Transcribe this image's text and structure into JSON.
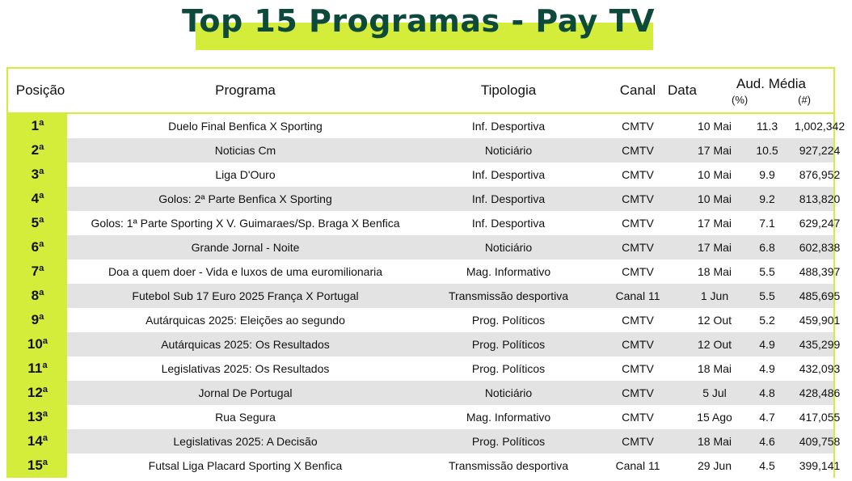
{
  "title": "Top 15 Programas - Pay TV",
  "header": {
    "posicao": "Posição",
    "programa": "Programa",
    "tipologia": "Tipologia",
    "canal": "Canal",
    "data": "Data",
    "aud_media": "Aud. Média",
    "pct": "(%)",
    "num": "(#)"
  },
  "colors": {
    "accent": "#d4ec3a",
    "title": "#0e4a3c",
    "stripe": "#e3e3e3"
  },
  "rows": [
    {
      "pos": "1ª",
      "programa": "Duelo Final Benfica X Sporting",
      "tipologia": "Inf. Desportiva",
      "canal": "CMTV",
      "data": "10 Mai",
      "pct": "11.3",
      "num": "1,002,342"
    },
    {
      "pos": "2ª",
      "programa": "Noticias Cm",
      "tipologia": "Noticiário",
      "canal": "CMTV",
      "data": "17 Mai",
      "pct": "10.5",
      "num": "927,224"
    },
    {
      "pos": "3ª",
      "programa": "Liga D'Ouro",
      "tipologia": "Inf. Desportiva",
      "canal": "CMTV",
      "data": "10 Mai",
      "pct": "9.9",
      "num": "876,952"
    },
    {
      "pos": "4ª",
      "programa": "Golos: 2ª Parte Benfica X Sporting",
      "tipologia": "Inf. Desportiva",
      "canal": "CMTV",
      "data": "10 Mai",
      "pct": "9.2",
      "num": "813,820"
    },
    {
      "pos": "5ª",
      "programa": "Golos: 1ª Parte Sporting X V. Guimaraes/Sp. Braga X Benfica",
      "tipologia": "Inf. Desportiva",
      "canal": "CMTV",
      "data": "17 Mai",
      "pct": "7.1",
      "num": "629,247"
    },
    {
      "pos": "6ª",
      "programa": "Grande Jornal - Noite",
      "tipologia": "Noticiário",
      "canal": "CMTV",
      "data": "17 Mai",
      "pct": "6.8",
      "num": "602,838"
    },
    {
      "pos": "7ª",
      "programa": "Doa a quem doer - Vida e luxos de uma euromilionaria",
      "tipologia": "Mag. Informativo",
      "canal": "CMTV",
      "data": "18 Mai",
      "pct": "5.5",
      "num": "488,397"
    },
    {
      "pos": "8ª",
      "programa": "Futebol Sub 17 Euro 2025 França X Portugal",
      "tipologia": "Transmissão desportiva",
      "canal": "Canal 11",
      "data": "1 Jun",
      "pct": "5.5",
      "num": "485,695"
    },
    {
      "pos": "9ª",
      "programa": "Autárquicas 2025: Eleições ao segundo",
      "tipologia": "Prog. Políticos",
      "canal": "CMTV",
      "data": "12 Out",
      "pct": "5.2",
      "num": "459,901"
    },
    {
      "pos": "10ª",
      "programa": "Autárquicas 2025: Os Resultados",
      "tipologia": "Prog. Políticos",
      "canal": "CMTV",
      "data": "12 Out",
      "pct": "4.9",
      "num": "435,299"
    },
    {
      "pos": "11ª",
      "programa": "Legislativas 2025: Os Resultados",
      "tipologia": "Prog. Políticos",
      "canal": "CMTV",
      "data": "18 Mai",
      "pct": "4.9",
      "num": "432,093"
    },
    {
      "pos": "12ª",
      "programa": "Jornal De Portugal",
      "tipologia": "Noticiário",
      "canal": "CMTV",
      "data": "5 Jul",
      "pct": "4.8",
      "num": "428,486"
    },
    {
      "pos": "13ª",
      "programa": "Rua Segura",
      "tipologia": "Mag. Informativo",
      "canal": "CMTV",
      "data": "15 Ago",
      "pct": "4.7",
      "num": "417,055"
    },
    {
      "pos": "14ª",
      "programa": "Legislativas 2025: A Decisão",
      "tipologia": "Prog. Políticos",
      "canal": "CMTV",
      "data": "18 Mai",
      "pct": "4.6",
      "num": "409,758"
    },
    {
      "pos": "15ª",
      "programa": "Futsal Liga Placard Sporting X Benfica",
      "tipologia": "Transmissão desportiva",
      "canal": "Canal 11",
      "data": "29 Jun",
      "pct": "4.5",
      "num": "399,141"
    }
  ]
}
